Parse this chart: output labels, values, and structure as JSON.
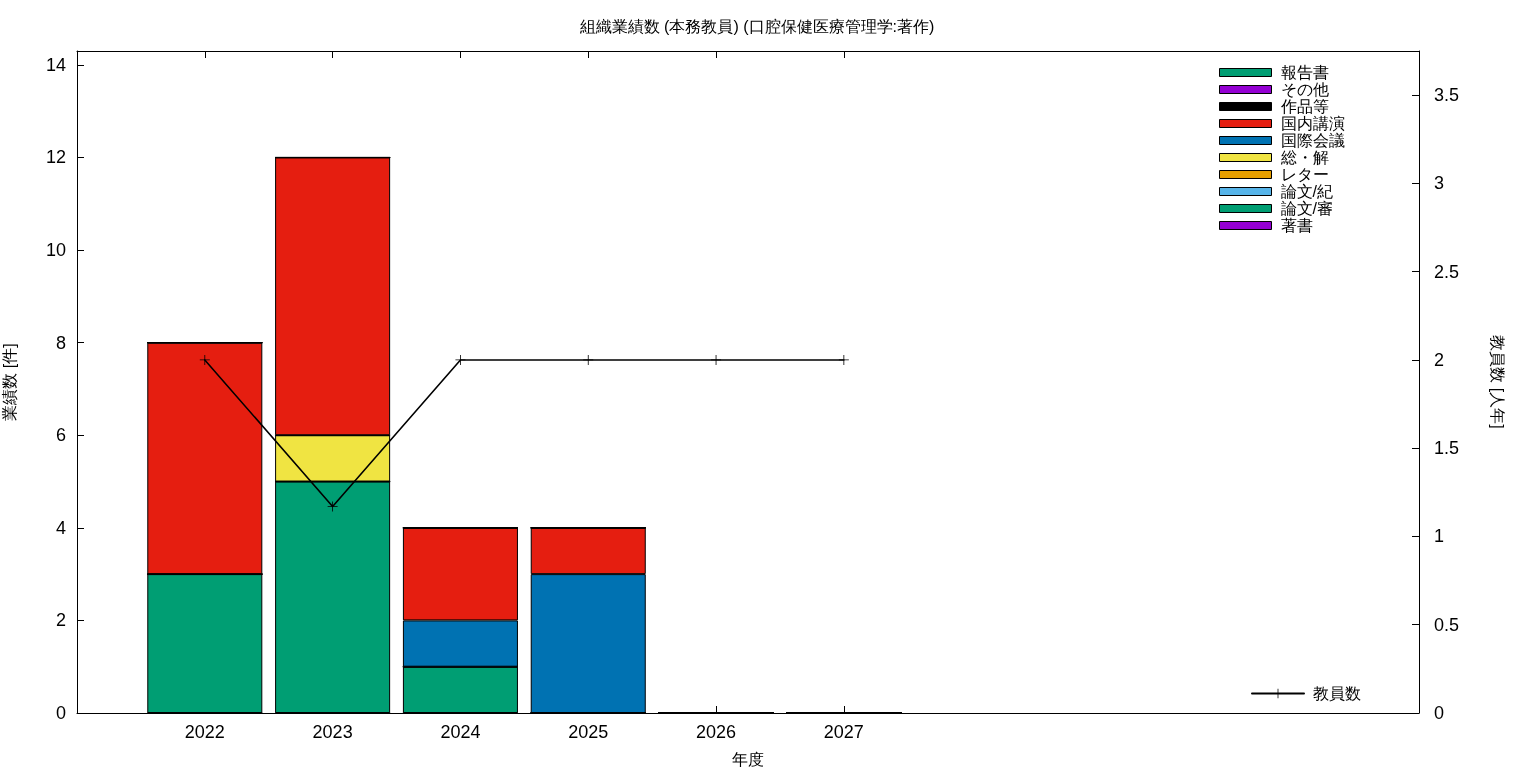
{
  "chart_data": {
    "type": "bar",
    "title": "組織業績数 (本務教員) (口腔保健医療管理学:著作)",
    "xlabel": "年度",
    "ylabel": "業績数 [件]",
    "y2label": "教員数 [人年]",
    "x": [
      2022,
      2023,
      2024,
      2025,
      2026,
      2027
    ],
    "xlim": [
      2021,
      2031.5
    ],
    "xticks": [
      2022,
      2023,
      2024,
      2025,
      2026,
      2027
    ],
    "ylim": [
      0,
      14.3
    ],
    "yticks": [
      0,
      2,
      4,
      6,
      8,
      10,
      12,
      14
    ],
    "y2lim": [
      0,
      3.75
    ],
    "y2ticks": [
      0,
      0.5,
      1,
      1.5,
      2,
      2.5,
      3,
      3.5
    ],
    "stacked": true,
    "legend": "right",
    "marker": "cross",
    "line_style": "solid",
    "series": [
      {
        "name": "著書",
        "color": "#9400d3",
        "values": [
          0,
          0,
          0,
          0,
          0,
          0
        ]
      },
      {
        "name": "論文/審",
        "color": "#009e73",
        "values": [
          3,
          5,
          1,
          0,
          0,
          0
        ]
      },
      {
        "name": "論文/紀",
        "color": "#56b4e9",
        "values": [
          0,
          0,
          0,
          0,
          0,
          0
        ]
      },
      {
        "name": "レター",
        "color": "#e69f00",
        "values": [
          0,
          0,
          0,
          0,
          0,
          0
        ]
      },
      {
        "name": "総・解",
        "color": "#f0e442",
        "values": [
          0,
          1,
          0,
          0,
          0,
          0
        ]
      },
      {
        "name": "国際会議",
        "color": "#0072b2",
        "values": [
          0,
          0,
          1,
          3,
          0,
          0
        ]
      },
      {
        "name": "国内講演",
        "color": "#e51e10",
        "values": [
          5,
          6,
          2,
          1,
          0,
          0
        ]
      },
      {
        "name": "作品等",
        "color": "#000000",
        "values": [
          0,
          0,
          0,
          0,
          0,
          0
        ]
      },
      {
        "name": "その他",
        "color": "#9400d3",
        "values": [
          0,
          0,
          0,
          0,
          0,
          0
        ]
      },
      {
        "name": "報告書",
        "color": "#009e73",
        "values": [
          0,
          0,
          0,
          0,
          0,
          0
        ]
      },
      {
        "name": "教員数",
        "type": "line",
        "axis": "y2",
        "color": "#000000",
        "values": [
          2,
          1.17,
          2,
          2,
          2,
          2
        ]
      }
    ]
  }
}
